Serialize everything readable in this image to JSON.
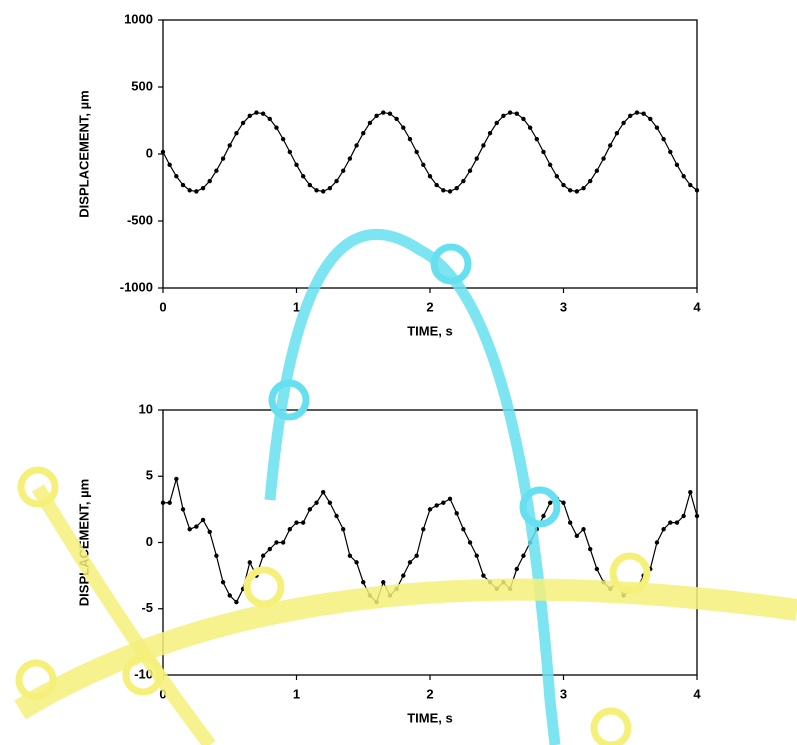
{
  "chart_data": [
    {
      "type": "line",
      "xlabel": "TIME, s",
      "ylabel": "DISPLACEMENT, µm",
      "xlim": [
        0,
        4
      ],
      "xticks": [
        0,
        1,
        2,
        3,
        4
      ],
      "ylim": [
        -1000,
        1000
      ],
      "yticks": [
        -1000,
        -500,
        0,
        500,
        1000
      ],
      "color": "#000000",
      "x": [
        0,
        0.05,
        0.1,
        0.15,
        0.2,
        0.25,
        0.3,
        0.35,
        0.4,
        0.45,
        0.5,
        0.55,
        0.6,
        0.65,
        0.7,
        0.75,
        0.8,
        0.85,
        0.9,
        0.95,
        1,
        1.05,
        1.1,
        1.15,
        1.2,
        1.25,
        1.3,
        1.35,
        1.4,
        1.45,
        1.5,
        1.55,
        1.6,
        1.65,
        1.7,
        1.75,
        1.8,
        1.85,
        1.9,
        1.95,
        2,
        2.05,
        2.1,
        2.15,
        2.2,
        2.25,
        2.3,
        2.35,
        2.4,
        2.45,
        2.5,
        2.55,
        2.6,
        2.65,
        2.7,
        2.75,
        2.8,
        2.85,
        2.9,
        2.95,
        3,
        3.05,
        3.1,
        3.15,
        3.2,
        3.25,
        3.3,
        3.35,
        3.4,
        3.45,
        3.5,
        3.55,
        3.6,
        3.65,
        3.7,
        3.75,
        3.8,
        3.85,
        3.9,
        3.95,
        4
      ],
      "values": [
        15,
        -81,
        -166,
        -232,
        -271,
        -279,
        -255,
        -202,
        -125,
        -34,
        64,
        155,
        232,
        285,
        309,
        301,
        262,
        196,
        111,
        15,
        -81,
        -166,
        -232,
        -271,
        -279,
        -255,
        -202,
        -125,
        -34,
        64,
        155,
        232,
        285,
        309,
        301,
        262,
        196,
        111,
        15,
        -81,
        -166,
        -232,
        -271,
        -279,
        -255,
        -202,
        -125,
        -34,
        64,
        155,
        232,
        285,
        309,
        301,
        262,
        196,
        111,
        15,
        -81,
        -166,
        -232,
        -271,
        -279,
        -255,
        -202,
        -125,
        -34,
        64,
        155,
        232,
        285,
        309,
        301,
        262,
        196,
        111,
        15,
        -81,
        -166,
        -232,
        -271
      ]
    },
    {
      "type": "line",
      "xlabel": "TIME, s",
      "ylabel": "DISPLACEMENT, µm",
      "xlim": [
        0,
        4
      ],
      "xticks": [
        0,
        1,
        2,
        3,
        4
      ],
      "ylim": [
        -10,
        10
      ],
      "yticks": [
        -10,
        -5,
        0,
        5,
        10
      ],
      "color": "#000000",
      "x": [
        0,
        0.05,
        0.1,
        0.15,
        0.2,
        0.25,
        0.3,
        0.35,
        0.4,
        0.45,
        0.5,
        0.55,
        0.6,
        0.65,
        0.7,
        0.75,
        0.8,
        0.85,
        0.9,
        0.95,
        1,
        1.05,
        1.1,
        1.15,
        1.2,
        1.25,
        1.3,
        1.35,
        1.4,
        1.45,
        1.5,
        1.55,
        1.6,
        1.65,
        1.7,
        1.75,
        1.8,
        1.85,
        1.9,
        1.95,
        2,
        2.05,
        2.1,
        2.15,
        2.2,
        2.25,
        2.3,
        2.35,
        2.4,
        2.45,
        2.5,
        2.55,
        2.6,
        2.65,
        2.7,
        2.75,
        2.8,
        2.85,
        2.9,
        2.95,
        3,
        3.05,
        3.1,
        3.15,
        3.2,
        3.25,
        3.3,
        3.35,
        3.4,
        3.45,
        3.5,
        3.55,
        3.6,
        3.65,
        3.7,
        3.75,
        3.8,
        3.85,
        3.9,
        3.95,
        4
      ],
      "values": [
        3,
        3,
        4.8,
        2.5,
        1,
        1.2,
        1.7,
        0.8,
        -1,
        -3,
        -4,
        -4.5,
        -3.5,
        -1.5,
        -2.5,
        -1,
        -0.5,
        0,
        0,
        1,
        1.5,
        1.5,
        2.5,
        3,
        3.8,
        3,
        2,
        1,
        -1,
        -1.5,
        -3,
        -4,
        -4.5,
        -3,
        -4,
        -3.5,
        -2.5,
        -1.5,
        -1,
        1,
        2.5,
        2.8,
        3,
        3.3,
        2.2,
        1,
        0,
        -1,
        -2.5,
        -3,
        -3.5,
        -3,
        -3.5,
        -2,
        -1,
        0,
        1,
        2,
        3,
        3.3,
        3,
        1.5,
        0.5,
        1,
        -0.5,
        -2,
        -3,
        -3.5,
        -3,
        -4,
        -3.5,
        -3.5,
        -2.5,
        -2,
        0,
        1,
        1.5,
        1.5,
        2,
        3.8,
        2
      ]
    }
  ]
}
